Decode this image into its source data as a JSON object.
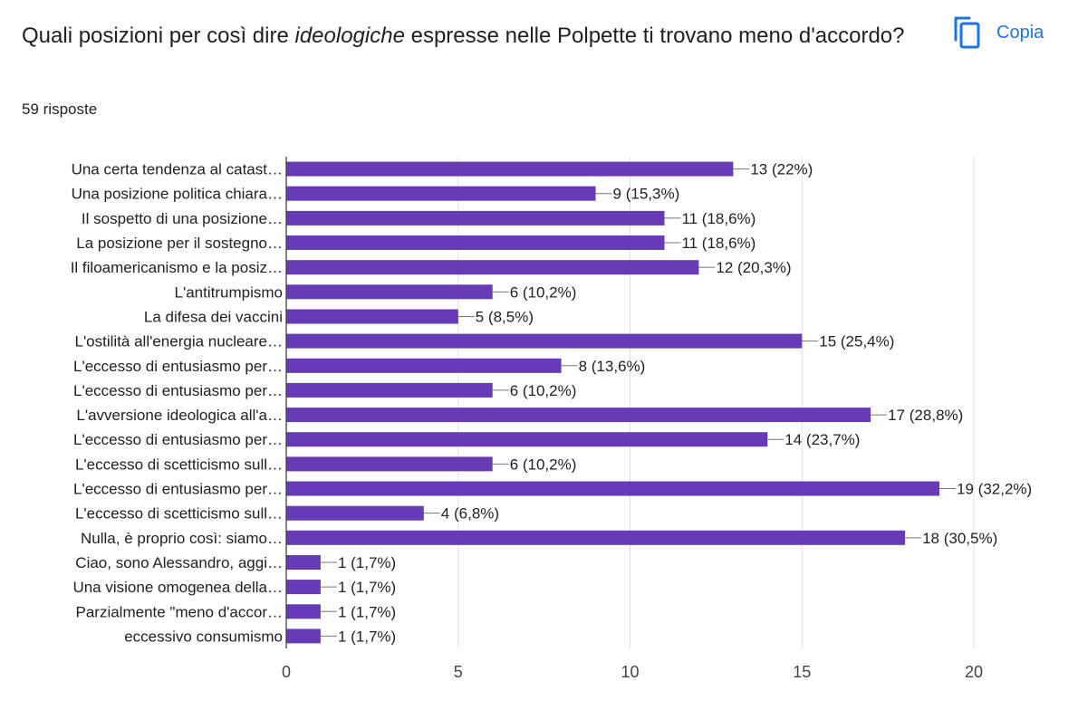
{
  "question": {
    "prefix": "Quali posizioni per così dire ",
    "emphasis": "ideologiche",
    "suffix": " espresse nelle Polpette ti trovano meno d'accordo?"
  },
  "responses_label": "59 risposte",
  "copy_button": {
    "label": "Copia",
    "icon": "copy-icon"
  },
  "colors": {
    "bar": "#673ab7",
    "accent": "#1a73e8",
    "grid": "#e0e0e0",
    "axis": "#333333"
  },
  "chart_data": {
    "type": "bar",
    "orientation": "horizontal",
    "categories": [
      "Una certa tendenza al catast…",
      "Una posizione politica chiara…",
      "Il sospetto di una posizione…",
      "La posizione per il sostegno…",
      "Il filoamericanismo e la posiz…",
      "L'antitrumpismo",
      "La difesa dei vaccini",
      "L'ostilità all'energia nucleare…",
      "L'eccesso di entusiasmo per…",
      "L'eccesso di entusiasmo per…",
      "L'avversione ideologica all'a…",
      "L'eccesso di entusiasmo per…",
      "L'eccesso di scetticismo sull…",
      "L'eccesso di entusiasmo per…",
      "L'eccesso di scetticismo sull…",
      "Nulla, è proprio così: siamo…",
      "Ciao, sono Alessandro, aggi…",
      "Una visione omogenea della…",
      "Parzialmente \"meno d'accor…",
      "eccessivo consumismo"
    ],
    "values": [
      13,
      9,
      11,
      11,
      12,
      6,
      5,
      15,
      8,
      6,
      17,
      14,
      6,
      19,
      4,
      18,
      1,
      1,
      1,
      1
    ],
    "data_labels": [
      "13 (22%)",
      "9 (15,3%)",
      "11 (18,6%)",
      "11 (18,6%)",
      "12 (20,3%)",
      "6 (10,2%)",
      "5 (8,5%)",
      "15 (25,4%)",
      "8 (13,6%)",
      "6 (10,2%)",
      "17 (28,8%)",
      "14 (23,7%)",
      "6 (10,2%)",
      "19 (32,2%)",
      "4 (6,8%)",
      "18 (30,5%)",
      "1 (1,7%)",
      "1 (1,7%)",
      "1 (1,7%)",
      "1 (1,7%)"
    ],
    "xlim": [
      0,
      20
    ],
    "x_ticks": [
      "0",
      "5",
      "10",
      "15",
      "20"
    ],
    "grid": true,
    "xlabel": "",
    "ylabel": "",
    "title": ""
  }
}
